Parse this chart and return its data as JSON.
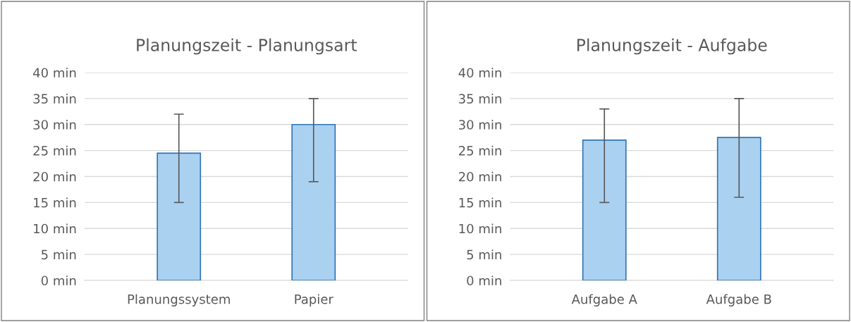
{
  "chart_data": [
    {
      "type": "bar",
      "title": "Planungszeit - Planungsart",
      "categories": [
        "Planungssystem",
        "Papier"
      ],
      "values": [
        24.5,
        30
      ],
      "errors": [
        [
          15,
          32
        ],
        [
          19,
          35
        ]
      ],
      "color": "#abd1f1",
      "ylim": [
        0,
        40
      ],
      "yticks": [
        {
          "value": 0,
          "label": "0 min"
        },
        {
          "value": 5,
          "label": "5 min"
        },
        {
          "value": 10,
          "label": "10 min"
        },
        {
          "value": 15,
          "label": "15 min"
        },
        {
          "value": 20,
          "label": "20 min"
        },
        {
          "value": 25,
          "label": "25 min"
        },
        {
          "value": 30,
          "label": "30 min"
        },
        {
          "value": 35,
          "label": "35 min"
        },
        {
          "value": 40,
          "label": "40 min"
        }
      ],
      "grid": "y",
      "legend": false
    },
    {
      "type": "bar",
      "title": "Planungszeit - Aufgabe",
      "categories": [
        "Aufgabe A",
        "Aufgabe B"
      ],
      "values": [
        27,
        27.5
      ],
      "errors": [
        [
          15,
          33
        ],
        [
          16,
          35
        ]
      ],
      "color": "#abd1f1",
      "ylim": [
        0,
        40
      ],
      "yticks": [
        {
          "value": 0,
          "label": "0 min"
        },
        {
          "value": 5,
          "label": "5 min"
        },
        {
          "value": 10,
          "label": "10 min"
        },
        {
          "value": 15,
          "label": "15 min"
        },
        {
          "value": 20,
          "label": "20 min"
        },
        {
          "value": 25,
          "label": "25 min"
        },
        {
          "value": 30,
          "label": "30 min"
        },
        {
          "value": 35,
          "label": "35 min"
        },
        {
          "value": 40,
          "label": "40 min"
        }
      ],
      "grid": "y",
      "legend": false
    }
  ]
}
